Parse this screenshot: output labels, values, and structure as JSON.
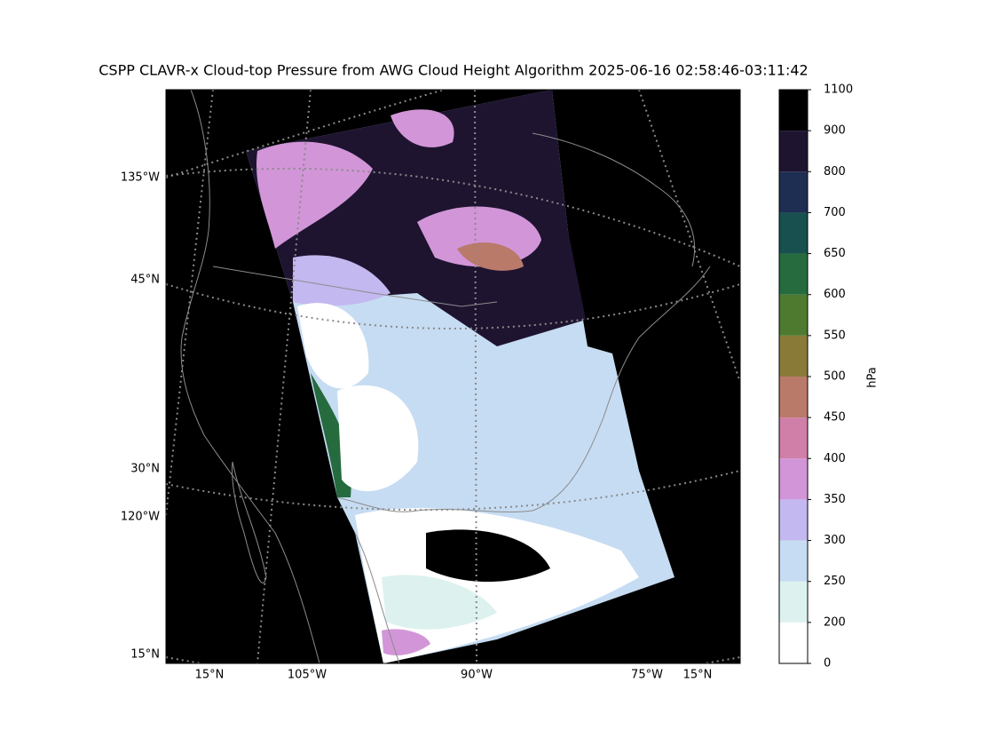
{
  "title": "CSPP CLAVR-x Cloud-top Pressure from AWG Cloud Height Algorithm 2025-06-16 02:58:46-03:11:42",
  "map": {
    "left_labels": [
      "135°W",
      "45°N",
      "30°N",
      "120°W",
      "15°N"
    ],
    "bottom_labels": [
      "15°N",
      "105°W",
      "90°W",
      "75°W",
      "15°N"
    ]
  },
  "colorbar": {
    "label": "hPa",
    "ticks": [
      0,
      200,
      250,
      300,
      350,
      400,
      450,
      500,
      550,
      600,
      650,
      700,
      800,
      900,
      1100
    ],
    "colors": [
      "#ffffff",
      "#ddf2ee",
      "#c6dcf2",
      "#c4b8f0",
      "#d296d8",
      "#d07fa8",
      "#b97a6a",
      "#8a7a38",
      "#4e7a30",
      "#256b3e",
      "#17504e",
      "#1e2d52",
      "#1e1430",
      "#000000"
    ]
  }
}
